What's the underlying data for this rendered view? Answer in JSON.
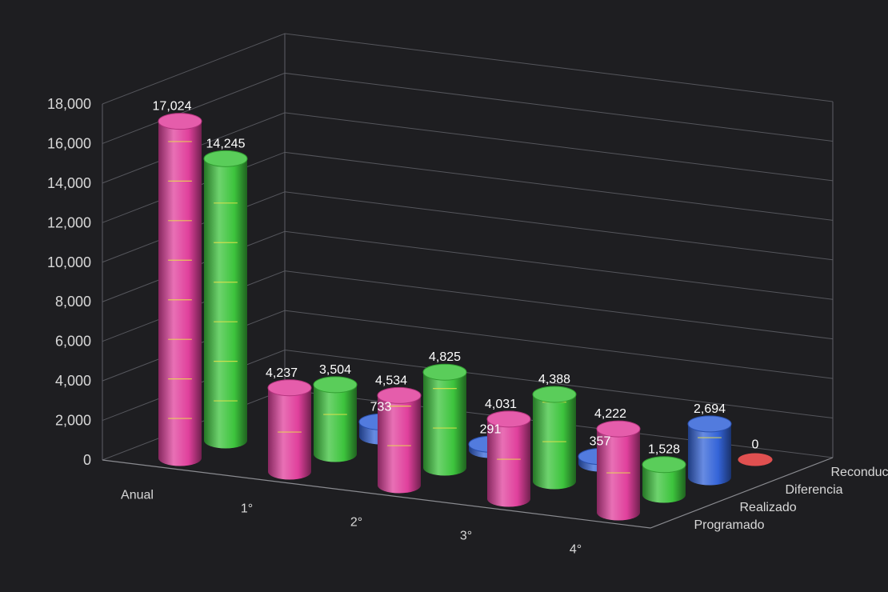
{
  "chart_data": {
    "type": "bar",
    "subtype": "3d-cylinder",
    "title": "",
    "categories": [
      "Anual",
      "1°",
      "2°",
      "3°",
      "4°"
    ],
    "y_ticks": [
      "0",
      "2,000",
      "4,000",
      "6,000",
      "8,000",
      "10,000",
      "12,000",
      "14,000",
      "16,000",
      "18,000"
    ],
    "ylim": [
      0,
      18000
    ],
    "series": [
      {
        "name": "Programado",
        "color": "#e0409c",
        "values": [
          17024,
          4237,
          4534,
          4031,
          4222
        ],
        "labels": [
          "17,024",
          "4,237",
          "4,534",
          "4,031",
          "4,222"
        ]
      },
      {
        "name": "Realizado",
        "color": "#3dc43d",
        "values": [
          14245,
          3504,
          4825,
          4388,
          1528
        ],
        "labels": [
          "14,245",
          "3,504",
          "4,825",
          "4,388",
          "1,528"
        ]
      },
      {
        "name": "Diferencia",
        "color": "#3464d8",
        "values": [
          null,
          733,
          291,
          357,
          2694
        ],
        "labels": [
          "",
          "733",
          "291",
          "357",
          "2,694"
        ]
      },
      {
        "name": "Reconduccion",
        "color": "#e05050",
        "values": [
          null,
          null,
          null,
          null,
          0
        ],
        "labels": [
          "",
          "",
          "",
          "",
          "0"
        ]
      }
    ],
    "grid": true,
    "background": "#1e1e21"
  }
}
